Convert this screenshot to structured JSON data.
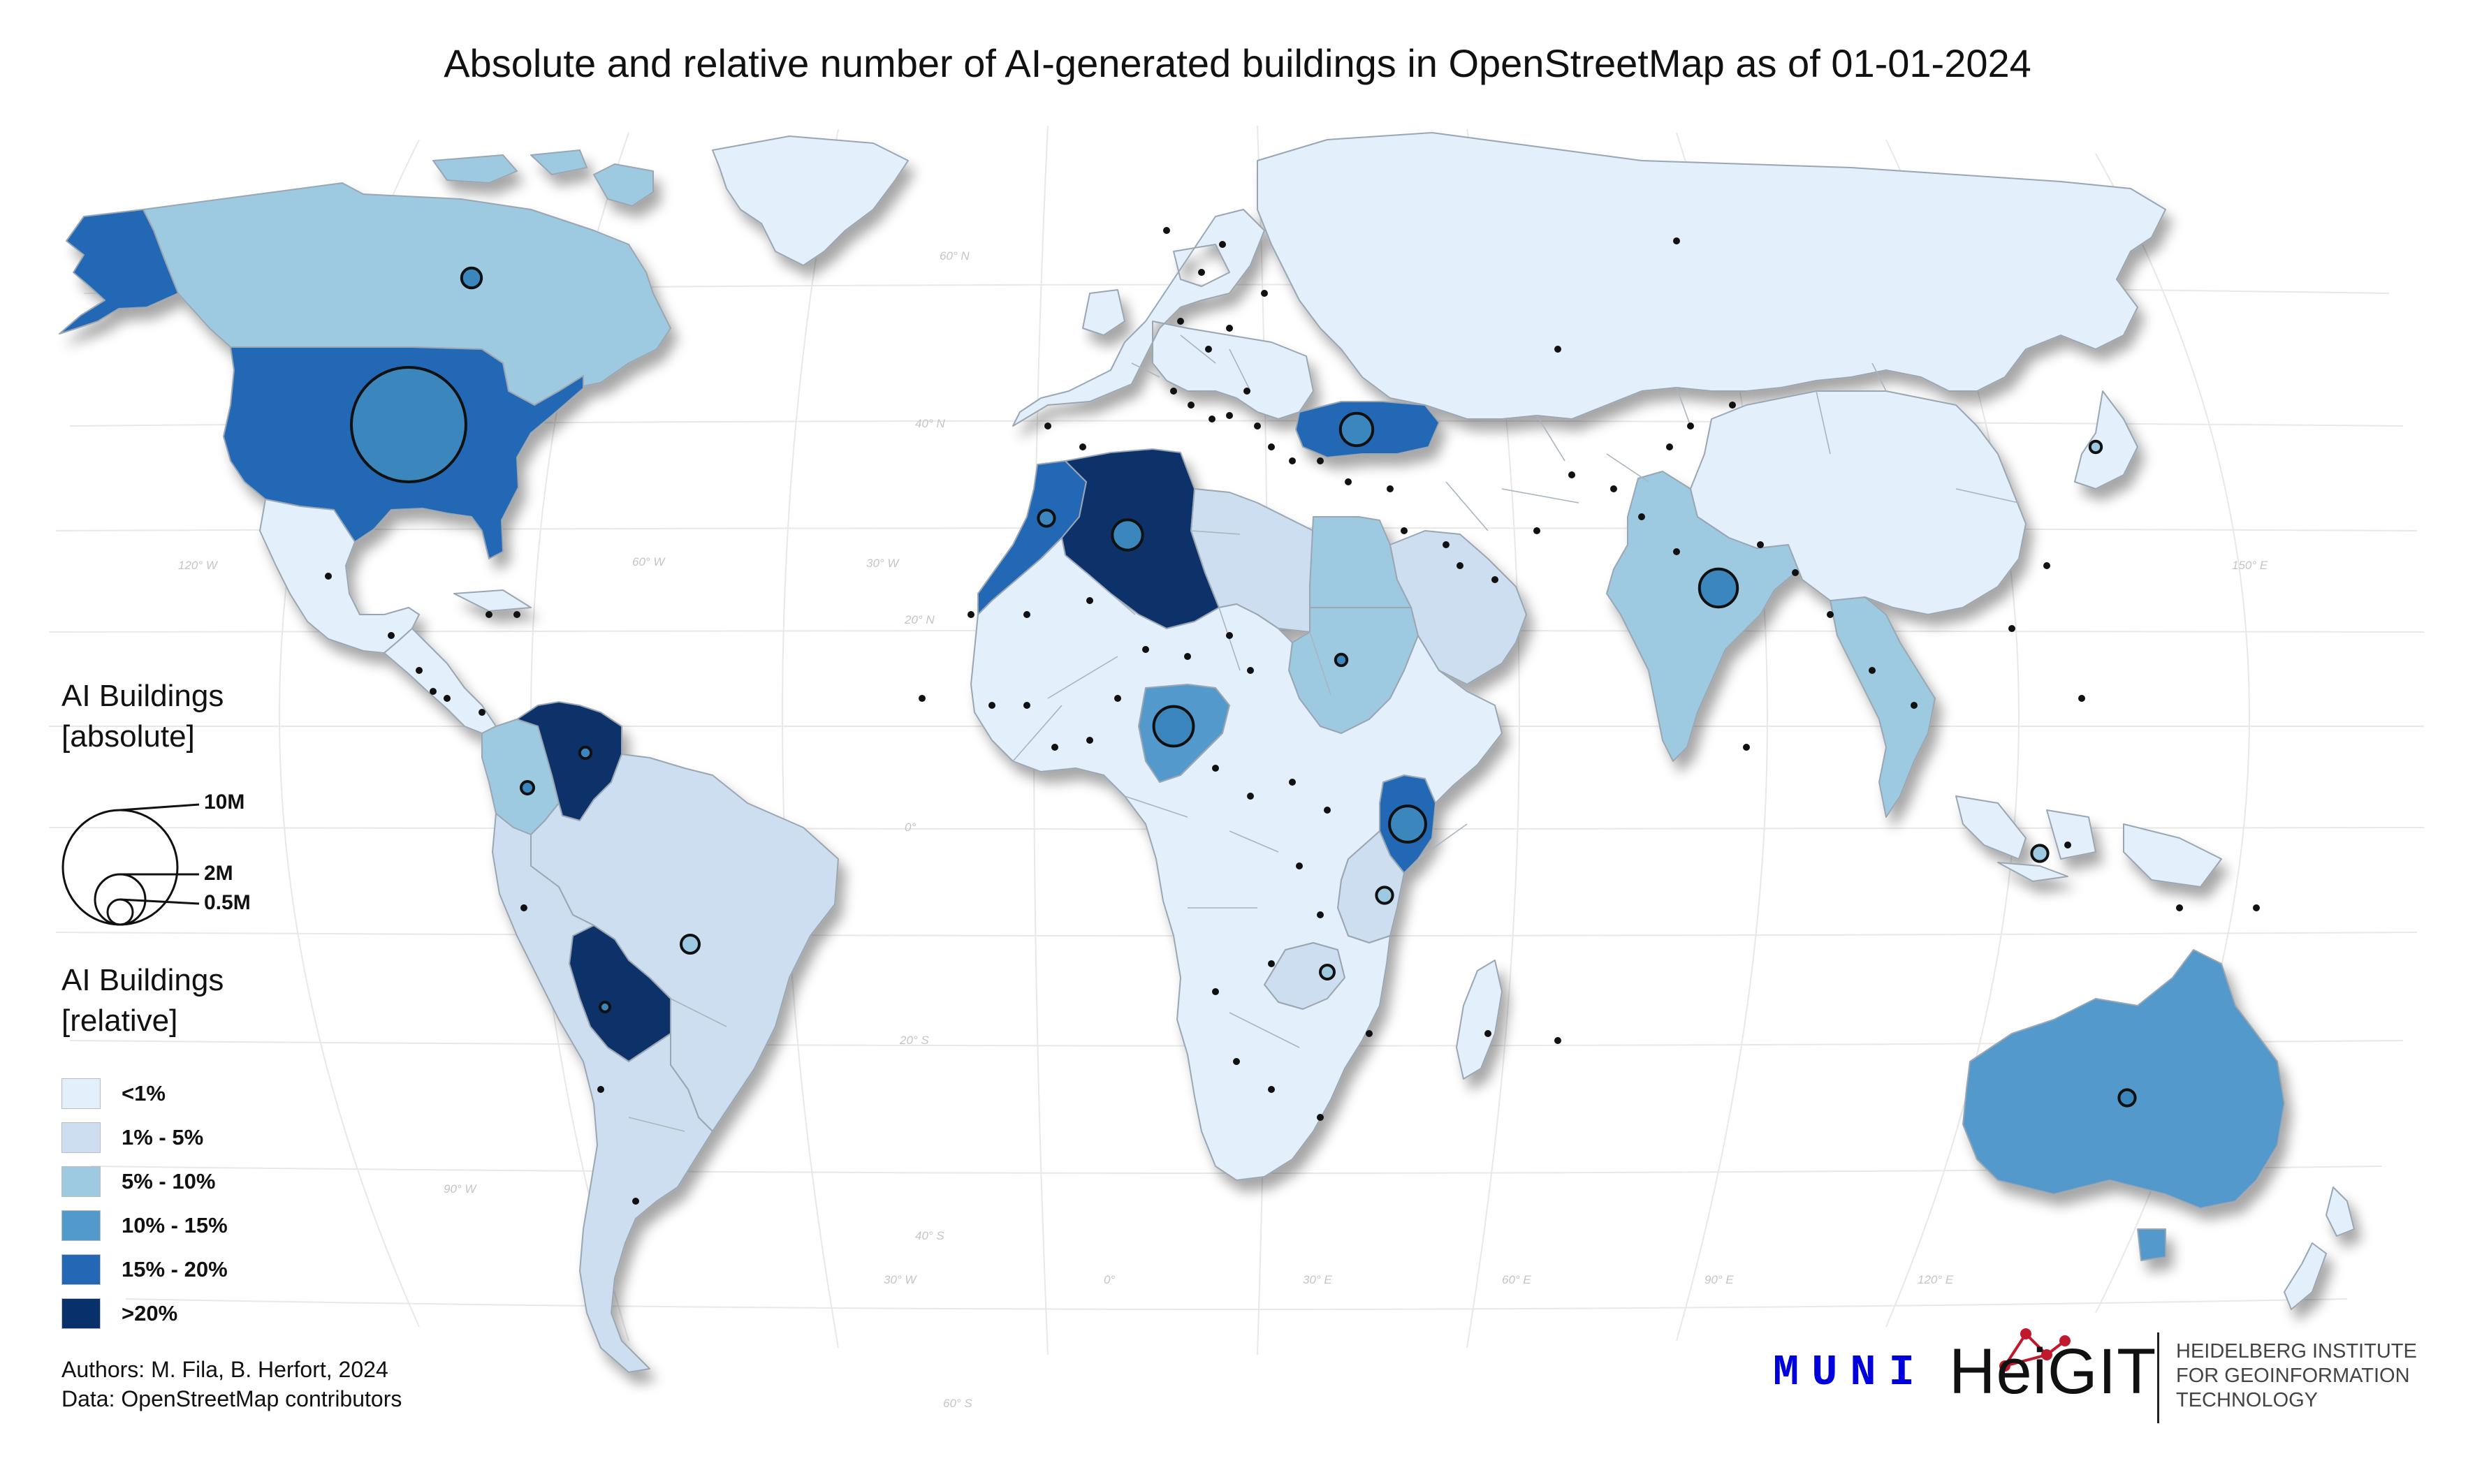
{
  "title": "Absolute and relative number of AI-generated buildings in OpenStreetMap as of 01-01-2024",
  "colors": {
    "lt1": "#e3effb",
    "p1_5": "#ccdeef",
    "p5_10": "#9ecae1",
    "p10_15": "#5299cc",
    "p15_20": "#2268b4",
    "gt20": "#08306b",
    "bubble_fill": "#3a86bd",
    "border": "#9aa6b2",
    "graticule": "#e8e8e8"
  },
  "legend": {
    "absolute_title": "AI Buildings\n[absolute]",
    "absolute_title_line1": "AI Buildings",
    "absolute_title_line2": "[absolute]",
    "sizes": [
      {
        "label": "10M",
        "value": 10000000
      },
      {
        "label": "2M",
        "value": 2000000
      },
      {
        "label": "0.5M",
        "value": 500000
      }
    ],
    "relative_title_line1": "AI Buildings",
    "relative_title_line2": "[relative]",
    "classes": [
      {
        "label": "<1%",
        "color_key": "lt1"
      },
      {
        "label": "1% - 5%",
        "color_key": "p1_5"
      },
      {
        "label": "5% - 10%",
        "color_key": "p5_10"
      },
      {
        "label": "10% - 15%",
        "color_key": "p10_15"
      },
      {
        "label": "15% - 20%",
        "color_key": "p15_20"
      },
      {
        "label": ">20%",
        "color_key": "gt20"
      }
    ]
  },
  "graticule_labels": {
    "lat": [
      "60° N",
      "40° N",
      "20° N",
      "0°",
      "20° S",
      "40° S",
      "60° S"
    ],
    "lon_north": [
      "120° W",
      "60° W",
      "30° W",
      "150° E"
    ],
    "lon_south": [
      "90° W",
      "30° W",
      "0°",
      "30° E",
      "60° E",
      "90° E",
      "120° E"
    ]
  },
  "credits": {
    "authors": "Authors: M. Fila, B. Herfort, 2024",
    "data": "Data: OpenStreetMap contributors"
  },
  "logos": {
    "muni": "MUNI",
    "heigit": "HeiGIT",
    "institute_line1": "HEIDELBERG INSTITUTE",
    "institute_line2": "FOR GEOINFORMATION",
    "institute_line3": "TECHNOLOGY"
  },
  "regions": [
    {
      "name": "Canada",
      "class": "p5_10",
      "ai_buildings_millions": 0.3
    },
    {
      "name": "United States",
      "class": "p15_20",
      "ai_buildings_millions": 10.0
    },
    {
      "name": "Alaska",
      "class": "p15_20"
    },
    {
      "name": "Greenland",
      "class": "lt1"
    },
    {
      "name": "Mexico",
      "class": "lt1"
    },
    {
      "name": "Central America",
      "class": "lt1"
    },
    {
      "name": "Colombia",
      "class": "p5_10",
      "ai_buildings_millions": 0.12
    },
    {
      "name": "Venezuela",
      "class": "gt20",
      "ai_buildings_millions": 0.1
    },
    {
      "name": "Brazil",
      "class": "p1_5",
      "ai_buildings_millions": 0.25
    },
    {
      "name": "Bolivia",
      "class": "gt20",
      "ai_buildings_millions": 0.05
    },
    {
      "name": "Rest of South America",
      "class": "p1_5"
    },
    {
      "name": "Morocco",
      "class": "p15_20",
      "ai_buildings_millions": 0.2
    },
    {
      "name": "Algeria",
      "class": "gt20",
      "ai_buildings_millions": 0.7
    },
    {
      "name": "Libya",
      "class": "p1_5"
    },
    {
      "name": "Egypt",
      "class": "p5_10"
    },
    {
      "name": "Sudan",
      "class": "p5_10",
      "ai_buildings_millions": 0.1
    },
    {
      "name": "Nigeria",
      "class": "p10_15",
      "ai_buildings_millions": 1.2
    },
    {
      "name": "Kenya",
      "class": "p15_20",
      "ai_buildings_millions": 1.0
    },
    {
      "name": "Tanzania",
      "class": "p1_5",
      "ai_buildings_millions": 0.2
    },
    {
      "name": "Zambia",
      "class": "p1_5",
      "ai_buildings_millions": 0.15
    },
    {
      "name": "Rest of Africa",
      "class": "lt1"
    },
    {
      "name": "Turkey",
      "class": "p15_20",
      "ai_buildings_millions": 0.8
    },
    {
      "name": "Saudi Arabia",
      "class": "p1_5"
    },
    {
      "name": "India",
      "class": "p5_10",
      "ai_buildings_millions": 1.1
    },
    {
      "name": "Mainland Southeast Asia",
      "class": "p5_10"
    },
    {
      "name": "Russia",
      "class": "lt1"
    },
    {
      "name": "China",
      "class": "lt1"
    },
    {
      "name": "Europe",
      "class": "lt1"
    },
    {
      "name": "Indonesia",
      "class": "lt1",
      "ai_buildings_millions": 0.2
    },
    {
      "name": "Japan",
      "class": "lt1",
      "ai_buildings_millions": 0.1
    },
    {
      "name": "Australia",
      "class": "p10_15",
      "ai_buildings_millions": 0.2
    },
    {
      "name": "New Zealand",
      "class": "lt1"
    },
    {
      "name": "Madagascar",
      "class": "lt1"
    }
  ]
}
